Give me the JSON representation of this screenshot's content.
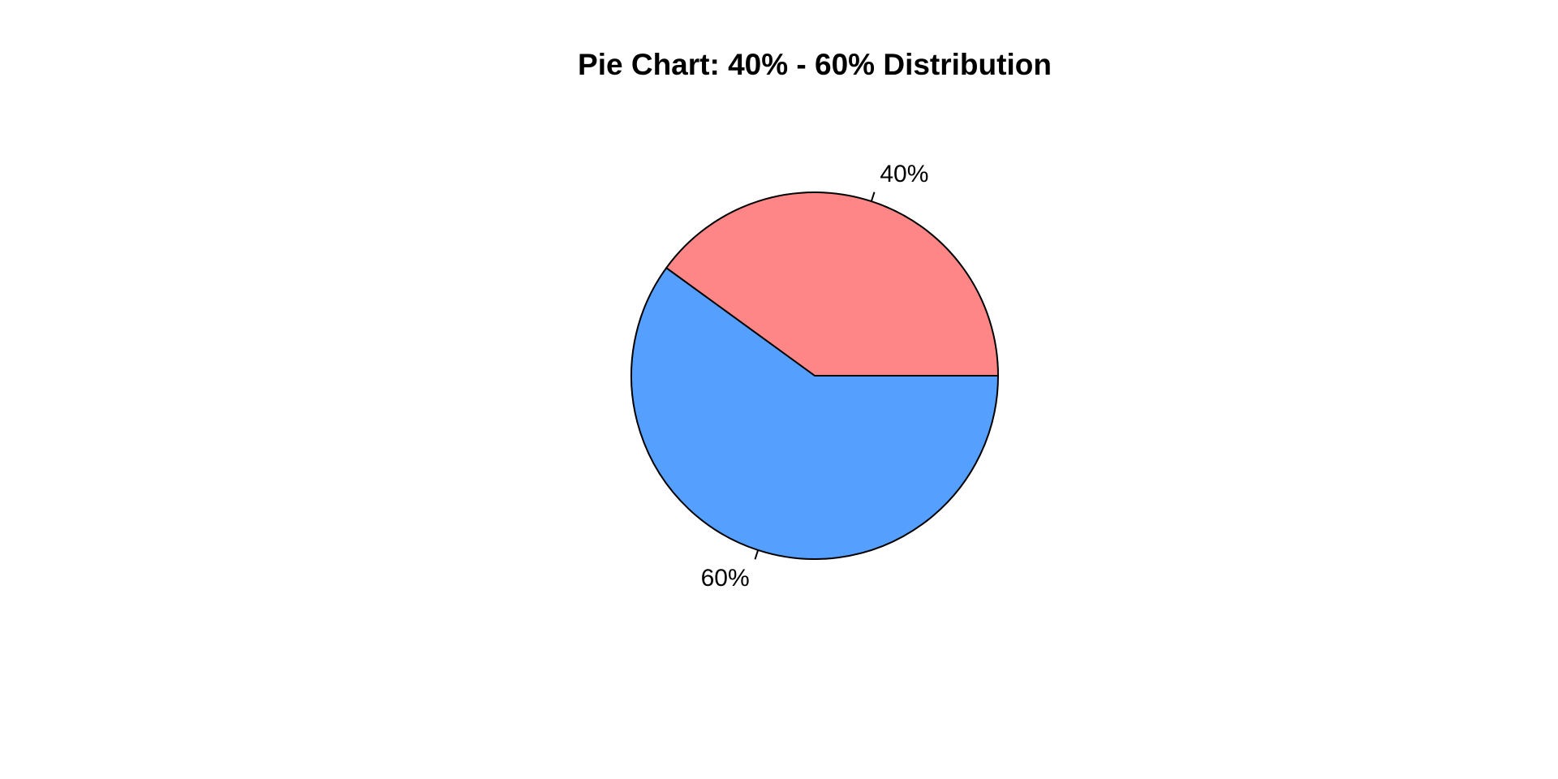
{
  "chart_data": {
    "type": "pie",
    "title": "Pie Chart: 40% - 60% Distribution",
    "slices": [
      {
        "value": 40,
        "label": "40%",
        "color": "#FF8686"
      },
      {
        "value": 60,
        "label": "60%",
        "color": "#559FFF"
      }
    ],
    "start_angle_deg": 0,
    "direction": "counterclockwise",
    "legend": "none",
    "border_color": "#000000"
  }
}
